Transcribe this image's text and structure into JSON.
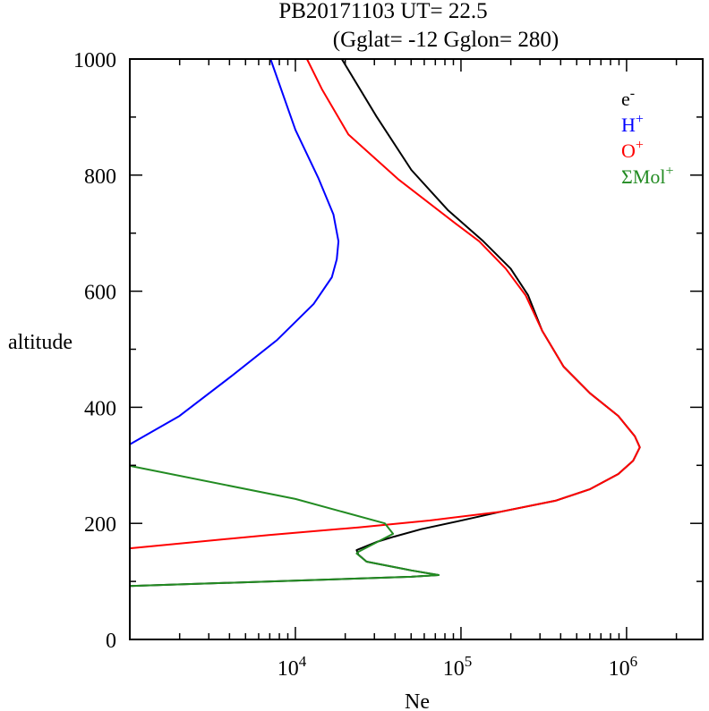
{
  "chart_data": {
    "type": "line",
    "title": "PB20171103   UT=  22.5",
    "subtitle": "(Gglat= -12   Gglon=  280)",
    "xlabel": "Ne",
    "ylabel": "altitude",
    "xscale": "log",
    "xlim_log10": [
      3,
      6.46
    ],
    "ylim": [
      0,
      1000
    ],
    "xticks": [
      {
        "base": "10",
        "exp": "4",
        "log": 4
      },
      {
        "base": "10",
        "exp": "5",
        "log": 5
      },
      {
        "base": "10",
        "exp": "6",
        "log": 6
      }
    ],
    "yticks": [
      "0",
      "200",
      "400",
      "600",
      "800",
      "1000"
    ],
    "legend_placement": "top-right",
    "series": [
      {
        "name": "e",
        "sup": "-",
        "color": "#000000",
        "points": [
          [
            3.0,
            92
          ],
          [
            4.7,
            108
          ],
          [
            4.865,
            111
          ],
          [
            4.7,
            119
          ],
          [
            4.43,
            134
          ],
          [
            4.38,
            146
          ],
          [
            4.37,
            154
          ],
          [
            4.49,
            168
          ],
          [
            4.595,
            177
          ],
          [
            4.76,
            190
          ],
          [
            4.97,
            203
          ],
          [
            5.24,
            220
          ],
          [
            5.57,
            239
          ],
          [
            5.78,
            259
          ],
          [
            5.95,
            285
          ],
          [
            6.04,
            308
          ],
          [
            6.08,
            331
          ],
          [
            6.05,
            350
          ],
          [
            5.95,
            385
          ],
          [
            5.78,
            424
          ],
          [
            5.62,
            470
          ],
          [
            5.49,
            532
          ],
          [
            5.405,
            593
          ],
          [
            5.3,
            639
          ],
          [
            5.135,
            686
          ],
          [
            4.92,
            740
          ],
          [
            4.7,
            809
          ],
          [
            4.49,
            901
          ],
          [
            4.28,
            1000
          ]
        ]
      },
      {
        "name": "H",
        "sup": "+",
        "color": "#0000ff",
        "points": [
          [
            3.0,
            336
          ],
          [
            3.3,
            385
          ],
          [
            3.62,
            455
          ],
          [
            3.89,
            516
          ],
          [
            4.11,
            578
          ],
          [
            4.22,
            624
          ],
          [
            4.25,
            655
          ],
          [
            4.26,
            686
          ],
          [
            4.23,
            732
          ],
          [
            4.14,
            794
          ],
          [
            4.0,
            878
          ],
          [
            3.85,
            1000
          ]
        ]
      },
      {
        "name": "O",
        "sup": "+",
        "color": "#ff0000",
        "points": [
          [
            3.0,
            157
          ],
          [
            3.84,
            180
          ],
          [
            4.38,
            193
          ],
          [
            4.81,
            205
          ],
          [
            5.24,
            220
          ],
          [
            5.57,
            239
          ],
          [
            5.78,
            259
          ],
          [
            5.95,
            285
          ],
          [
            6.04,
            308
          ],
          [
            6.08,
            331
          ],
          [
            6.05,
            350
          ],
          [
            5.95,
            385
          ],
          [
            5.78,
            424
          ],
          [
            5.62,
            470
          ],
          [
            5.49,
            532
          ],
          [
            5.39,
            593
          ],
          [
            5.27,
            639
          ],
          [
            5.11,
            686
          ],
          [
            4.97,
            716
          ],
          [
            4.62,
            793
          ],
          [
            4.32,
            870
          ],
          [
            4.16,
            948
          ],
          [
            4.07,
            1000
          ]
        ]
      },
      {
        "name": "ΣMol",
        "sup": "+",
        "color": "#228b22",
        "points": [
          [
            3.0,
            299
          ],
          [
            4.0,
            242
          ],
          [
            4.54,
            200
          ],
          [
            4.59,
            182
          ],
          [
            4.38,
            151
          ],
          [
            4.37,
            148
          ],
          [
            4.43,
            134
          ],
          [
            4.7,
            119
          ],
          [
            4.865,
            111
          ],
          [
            4.7,
            108
          ],
          [
            3.0,
            92
          ]
        ]
      }
    ]
  }
}
